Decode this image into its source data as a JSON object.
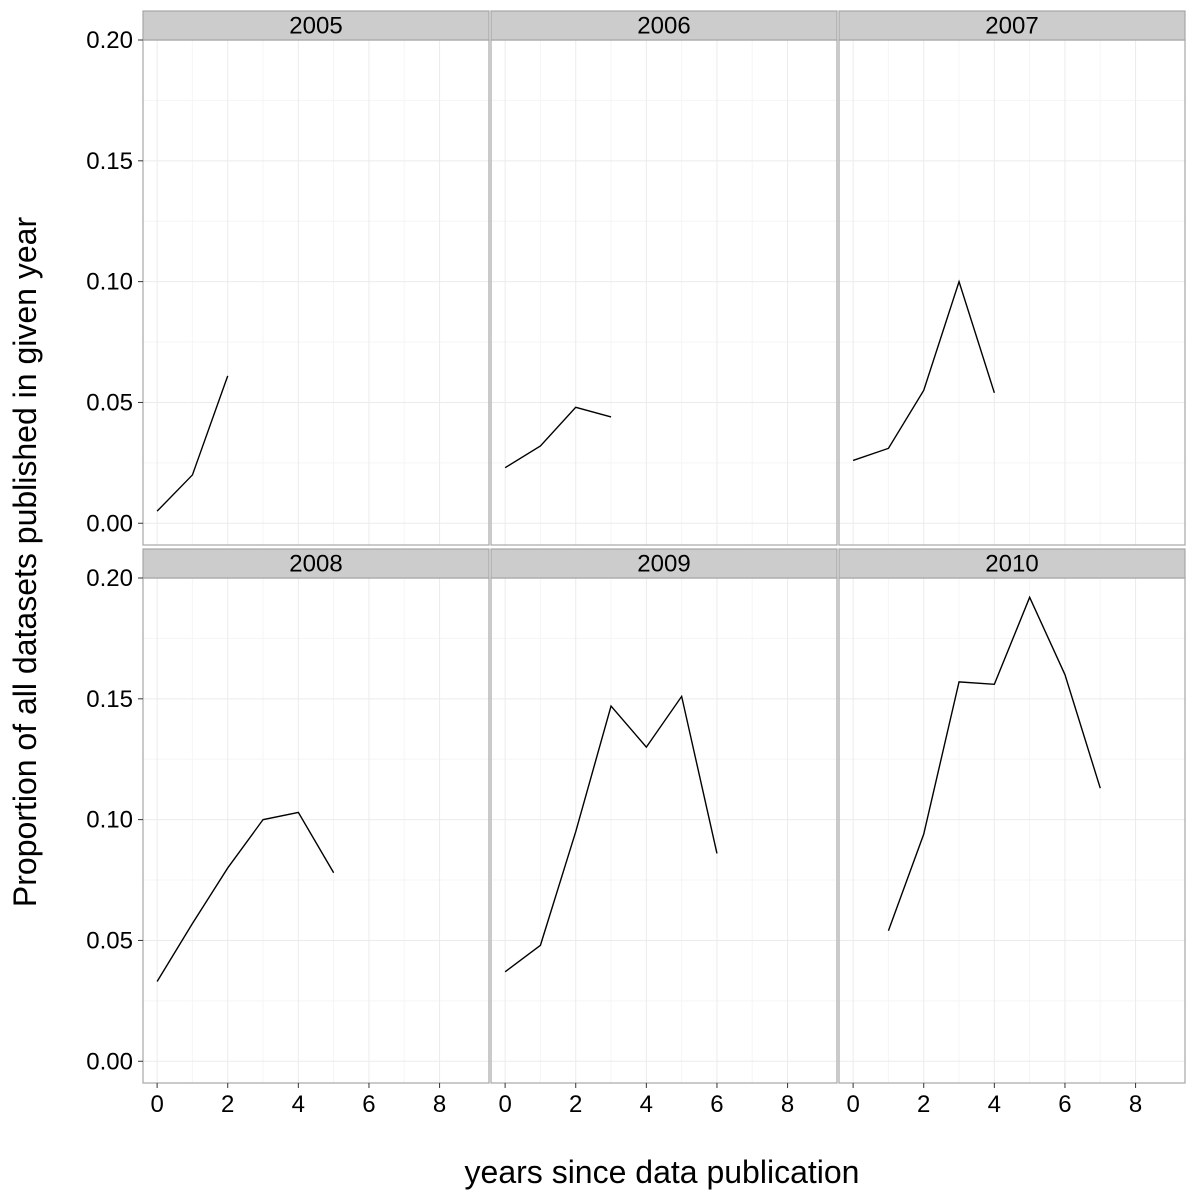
{
  "chart_data": {
    "type": "line",
    "facet_layout": "2x3",
    "xlabel": "years since data publication",
    "ylabel": "Proportion of all datasets published in given year",
    "xlim": [
      -0.4,
      9.4
    ],
    "ylim": [
      -0.009,
      0.2
    ],
    "x_ticks": [
      0,
      2,
      4,
      6,
      8
    ],
    "x_tick_labels": [
      "0",
      "2",
      "4",
      "6",
      "8"
    ],
    "y_ticks": [
      0.0,
      0.05,
      0.1,
      0.15,
      0.2
    ],
    "y_tick_labels": [
      "0.00",
      "0.05",
      "0.10",
      "0.15",
      "0.20"
    ],
    "grid": true,
    "colors": {
      "line": "#000000",
      "strip_fill": "#cccccc",
      "panel_border": "#a6a6a6",
      "grid_major": "#ebebeb",
      "grid_minor": "#f5f5f5"
    },
    "panels": [
      {
        "title": "2005",
        "x": [
          0,
          1,
          2
        ],
        "y": [
          0.005,
          0.02,
          0.061
        ]
      },
      {
        "title": "2006",
        "x": [
          0,
          1,
          2,
          3
        ],
        "y": [
          0.023,
          0.032,
          0.048,
          0.044
        ]
      },
      {
        "title": "2007",
        "x": [
          0,
          1,
          2,
          3,
          4
        ],
        "y": [
          0.026,
          0.031,
          0.055,
          0.1,
          0.054
        ]
      },
      {
        "title": "2008",
        "x": [
          0,
          1,
          2,
          3,
          4,
          5
        ],
        "y": [
          0.033,
          0.057,
          0.08,
          0.1,
          0.103,
          0.078
        ]
      },
      {
        "title": "2009",
        "x": [
          0,
          1,
          2,
          3,
          4,
          5,
          6
        ],
        "y": [
          0.037,
          0.048,
          0.095,
          0.147,
          0.13,
          0.151,
          0.086
        ]
      },
      {
        "title": "2010",
        "x": [
          1,
          2,
          3,
          4,
          5,
          6,
          7
        ],
        "y": [
          0.054,
          0.094,
          0.157,
          0.156,
          0.192,
          0.16,
          0.113
        ]
      }
    ]
  }
}
